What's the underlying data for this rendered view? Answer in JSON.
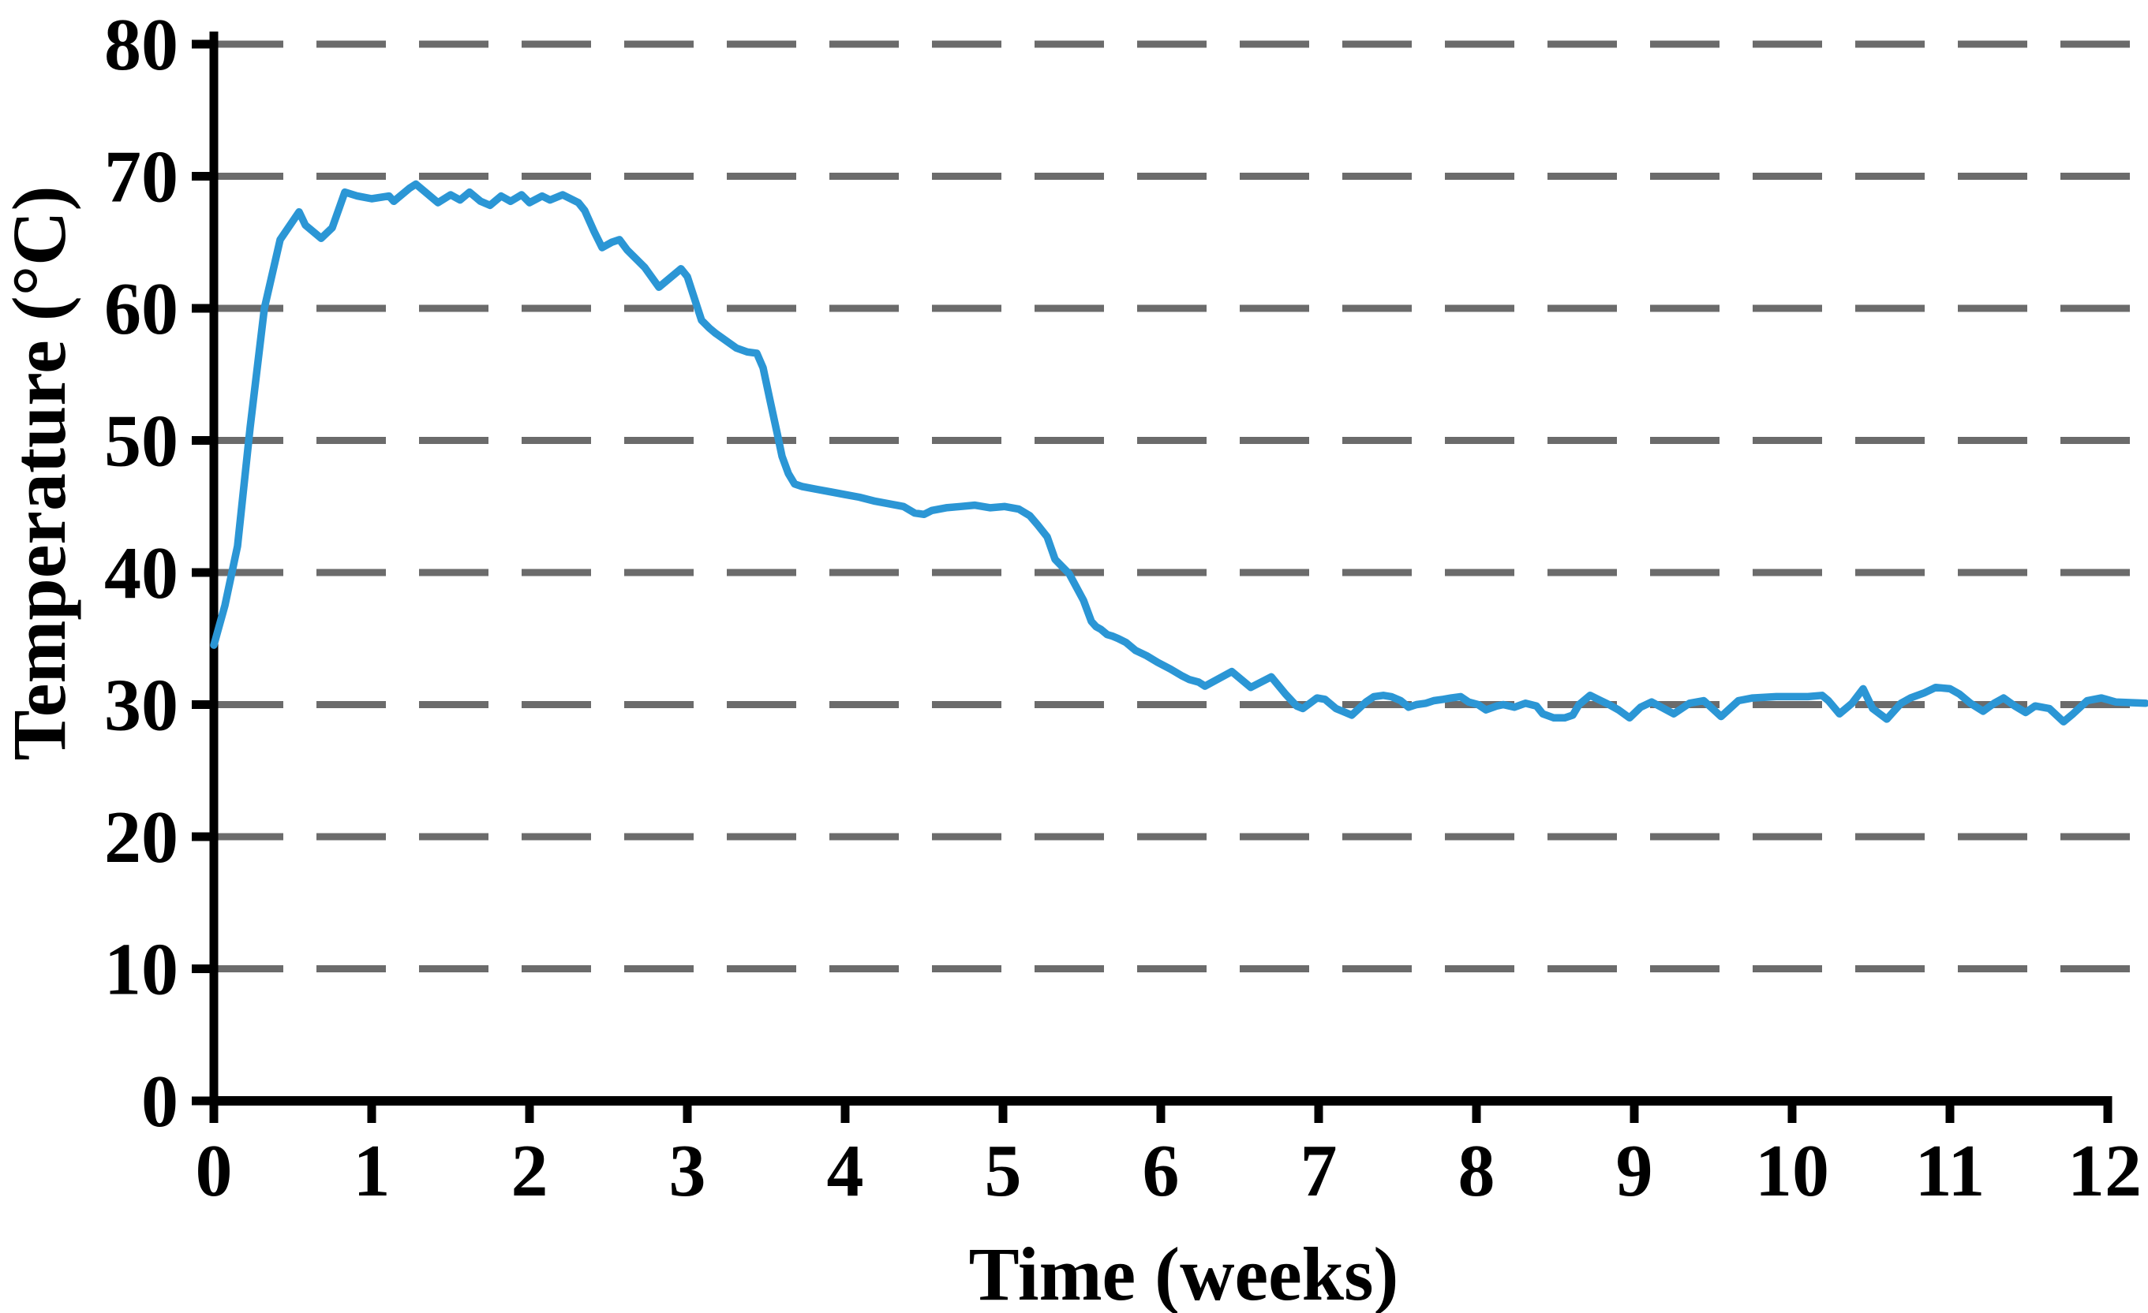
{
  "chart_data": {
    "type": "line",
    "title": "",
    "xlabel": "Time (weeks)",
    "ylabel": "Temperature (°C)",
    "xlim": [
      0,
      12
    ],
    "ylim": [
      0,
      80
    ],
    "x_ticks": [
      "0",
      "1",
      "2",
      "3",
      "4",
      "5",
      "6",
      "7",
      "8",
      "9",
      "10",
      "11",
      "12"
    ],
    "x_tick_values": [
      0,
      1,
      2,
      3,
      4,
      5,
      6,
      7,
      8,
      9,
      10,
      11,
      12
    ],
    "y_ticks": [
      "0",
      "10",
      "20",
      "30",
      "40",
      "50",
      "60",
      "70",
      "80"
    ],
    "y_tick_values": [
      0,
      10,
      20,
      30,
      40,
      50,
      60,
      70,
      80
    ],
    "grid": "horizontal-dashed",
    "legend_position": "none",
    "series": [
      {
        "name": "Temperature",
        "color": "#2B96D5",
        "x": [
          0,
          0.07,
          0.15,
          0.23,
          0.32,
          0.42,
          0.54,
          0.58,
          0.68,
          0.75,
          0.83,
          0.91,
          1.0,
          1.11,
          1.14,
          1.24,
          1.28,
          1.35,
          1.42,
          1.5,
          1.56,
          1.62,
          1.69,
          1.75,
          1.82,
          1.88,
          1.95,
          2.0,
          2.08,
          2.13,
          2.21,
          2.26,
          2.31,
          2.35,
          2.41,
          2.46,
          2.52,
          2.57,
          2.62,
          2.73,
          2.82,
          2.96,
          3.0,
          3.09,
          3.14,
          3.18,
          3.31,
          3.38,
          3.44,
          3.48,
          3.53,
          3.57,
          3.6,
          3.64,
          3.68,
          3.73,
          3.82,
          3.91,
          4.0,
          4.09,
          4.19,
          4.28,
          4.37,
          4.44,
          4.5,
          4.55,
          4.64,
          4.73,
          4.82,
          4.92,
          5.01,
          5.1,
          5.17,
          5.22,
          5.28,
          5.33,
          5.42,
          5.51,
          5.56,
          5.59,
          5.62,
          5.66,
          5.69,
          5.73,
          5.78,
          5.84,
          5.91,
          5.98,
          6.06,
          6.13,
          6.18,
          6.24,
          6.28,
          6.45,
          6.57,
          6.7,
          6.79,
          6.86,
          6.9,
          6.99,
          7.04,
          7.11,
          7.17,
          7.21,
          7.3,
          7.35,
          7.41,
          7.46,
          7.52,
          7.57,
          7.62,
          7.68,
          7.73,
          7.79,
          7.84,
          7.9,
          7.95,
          8.01,
          8.06,
          8.13,
          8.17,
          8.24,
          8.31,
          8.38,
          8.42,
          8.49,
          8.56,
          8.61,
          8.65,
          8.72,
          8.77,
          8.84,
          8.9,
          8.97,
          9.04,
          9.11,
          9.25,
          9.35,
          9.44,
          9.55,
          9.66,
          9.75,
          9.9,
          10.1,
          10.19,
          10.23,
          10.3,
          10.38,
          10.45,
          10.51,
          10.6,
          10.69,
          10.75,
          10.84,
          10.91,
          11.0,
          11.06,
          11.13,
          11.21,
          11.28,
          11.34,
          11.41,
          11.48,
          11.54,
          11.63,
          11.72,
          11.78,
          11.87,
          11.96,
          12.05,
          12.24
        ],
        "y": [
          34.5,
          37.5,
          42.0,
          51.0,
          60.0,
          65.2,
          67.3,
          66.3,
          65.3,
          66.1,
          68.8,
          68.5,
          68.3,
          68.5,
          68.1,
          69.1,
          69.4,
          68.7,
          68.0,
          68.6,
          68.2,
          68.8,
          68.1,
          67.8,
          68.5,
          68.1,
          68.6,
          68.0,
          68.5,
          68.2,
          68.6,
          68.3,
          68.0,
          67.4,
          65.8,
          64.6,
          65.0,
          65.2,
          64.4,
          63.1,
          61.6,
          63.0,
          62.4,
          59.1,
          58.5,
          58.1,
          57.0,
          56.7,
          56.6,
          55.5,
          52.7,
          50.5,
          48.8,
          47.5,
          46.7,
          46.5,
          46.3,
          46.1,
          45.9,
          45.7,
          45.4,
          45.2,
          45.0,
          44.5,
          44.4,
          44.7,
          44.9,
          45.0,
          45.1,
          44.9,
          45.0,
          44.8,
          44.3,
          43.6,
          42.7,
          41.0,
          39.9,
          37.9,
          36.3,
          35.9,
          35.7,
          35.3,
          35.2,
          35.0,
          34.7,
          34.1,
          33.7,
          33.2,
          32.7,
          32.2,
          31.9,
          31.7,
          31.4,
          32.5,
          31.3,
          32.1,
          30.8,
          29.9,
          29.7,
          30.5,
          30.4,
          29.7,
          29.4,
          29.2,
          30.2,
          30.6,
          30.7,
          30.6,
          30.3,
          29.8,
          30.0,
          30.1,
          30.3,
          30.4,
          30.5,
          30.6,
          30.2,
          30.0,
          29.6,
          29.9,
          30.0,
          29.8,
          30.1,
          29.9,
          29.3,
          29.0,
          29.0,
          29.2,
          30.0,
          30.7,
          30.4,
          30.0,
          29.6,
          29.0,
          29.8,
          30.2,
          29.3,
          30.1,
          30.3,
          29.1,
          30.3,
          30.5,
          30.6,
          30.6,
          30.7,
          30.3,
          29.3,
          30.1,
          31.2,
          29.7,
          28.9,
          30.1,
          30.5,
          30.9,
          31.3,
          31.2,
          30.8,
          30.1,
          29.5,
          30.1,
          30.5,
          29.9,
          29.4,
          29.9,
          29.7,
          28.7,
          29.3,
          30.3,
          30.5,
          30.2,
          30.1
        ]
      }
    ]
  },
  "colors": {
    "line": "#2B96D5",
    "grid": "#6B6B6B",
    "axis": "#000000",
    "text": "#000000",
    "background": "#FFFFFF"
  }
}
